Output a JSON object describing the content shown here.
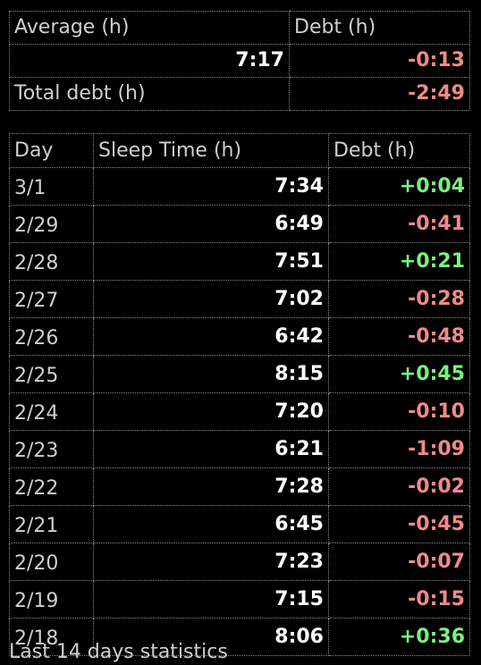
{
  "summary": {
    "average_label": "Average (h)",
    "debt_header": "Debt (h)",
    "average_value": "7:17",
    "average_debt": "-0:13",
    "total_debt_label": "Total debt (h)",
    "total_debt_value": "-2:49"
  },
  "daily": {
    "headers": [
      "Day",
      "Sleep Time (h)",
      "Debt (h)"
    ],
    "rows": [
      {
        "day": "3/1",
        "sleep": "7:34",
        "debt": "+0:04"
      },
      {
        "day": "2/29",
        "sleep": "6:49",
        "debt": "-0:41"
      },
      {
        "day": "2/28",
        "sleep": "7:51",
        "debt": "+0:21"
      },
      {
        "day": "2/27",
        "sleep": "7:02",
        "debt": "-0:28"
      },
      {
        "day": "2/26",
        "sleep": "6:42",
        "debt": "-0:48"
      },
      {
        "day": "2/25",
        "sleep": "8:15",
        "debt": "+0:45"
      },
      {
        "day": "2/24",
        "sleep": "7:20",
        "debt": "-0:10"
      },
      {
        "day": "2/23",
        "sleep": "6:21",
        "debt": "-1:09"
      },
      {
        "day": "2/22",
        "sleep": "7:28",
        "debt": "-0:02"
      },
      {
        "day": "2/21",
        "sleep": "6:45",
        "debt": "-0:45"
      },
      {
        "day": "2/20",
        "sleep": "7:23",
        "debt": "-0:07"
      },
      {
        "day": "2/19",
        "sleep": "7:15",
        "debt": "-0:15"
      },
      {
        "day": "2/18",
        "sleep": "8:06",
        "debt": "+0:36"
      }
    ]
  },
  "footer": {
    "text": "Last 14 days statistics"
  },
  "colors": {
    "background": "#000000",
    "positive": "#7cf07c",
    "negative": "#f08a8a",
    "label": "#cfcfcf",
    "value": "#ffffff",
    "grid": "#8a8a8a"
  }
}
